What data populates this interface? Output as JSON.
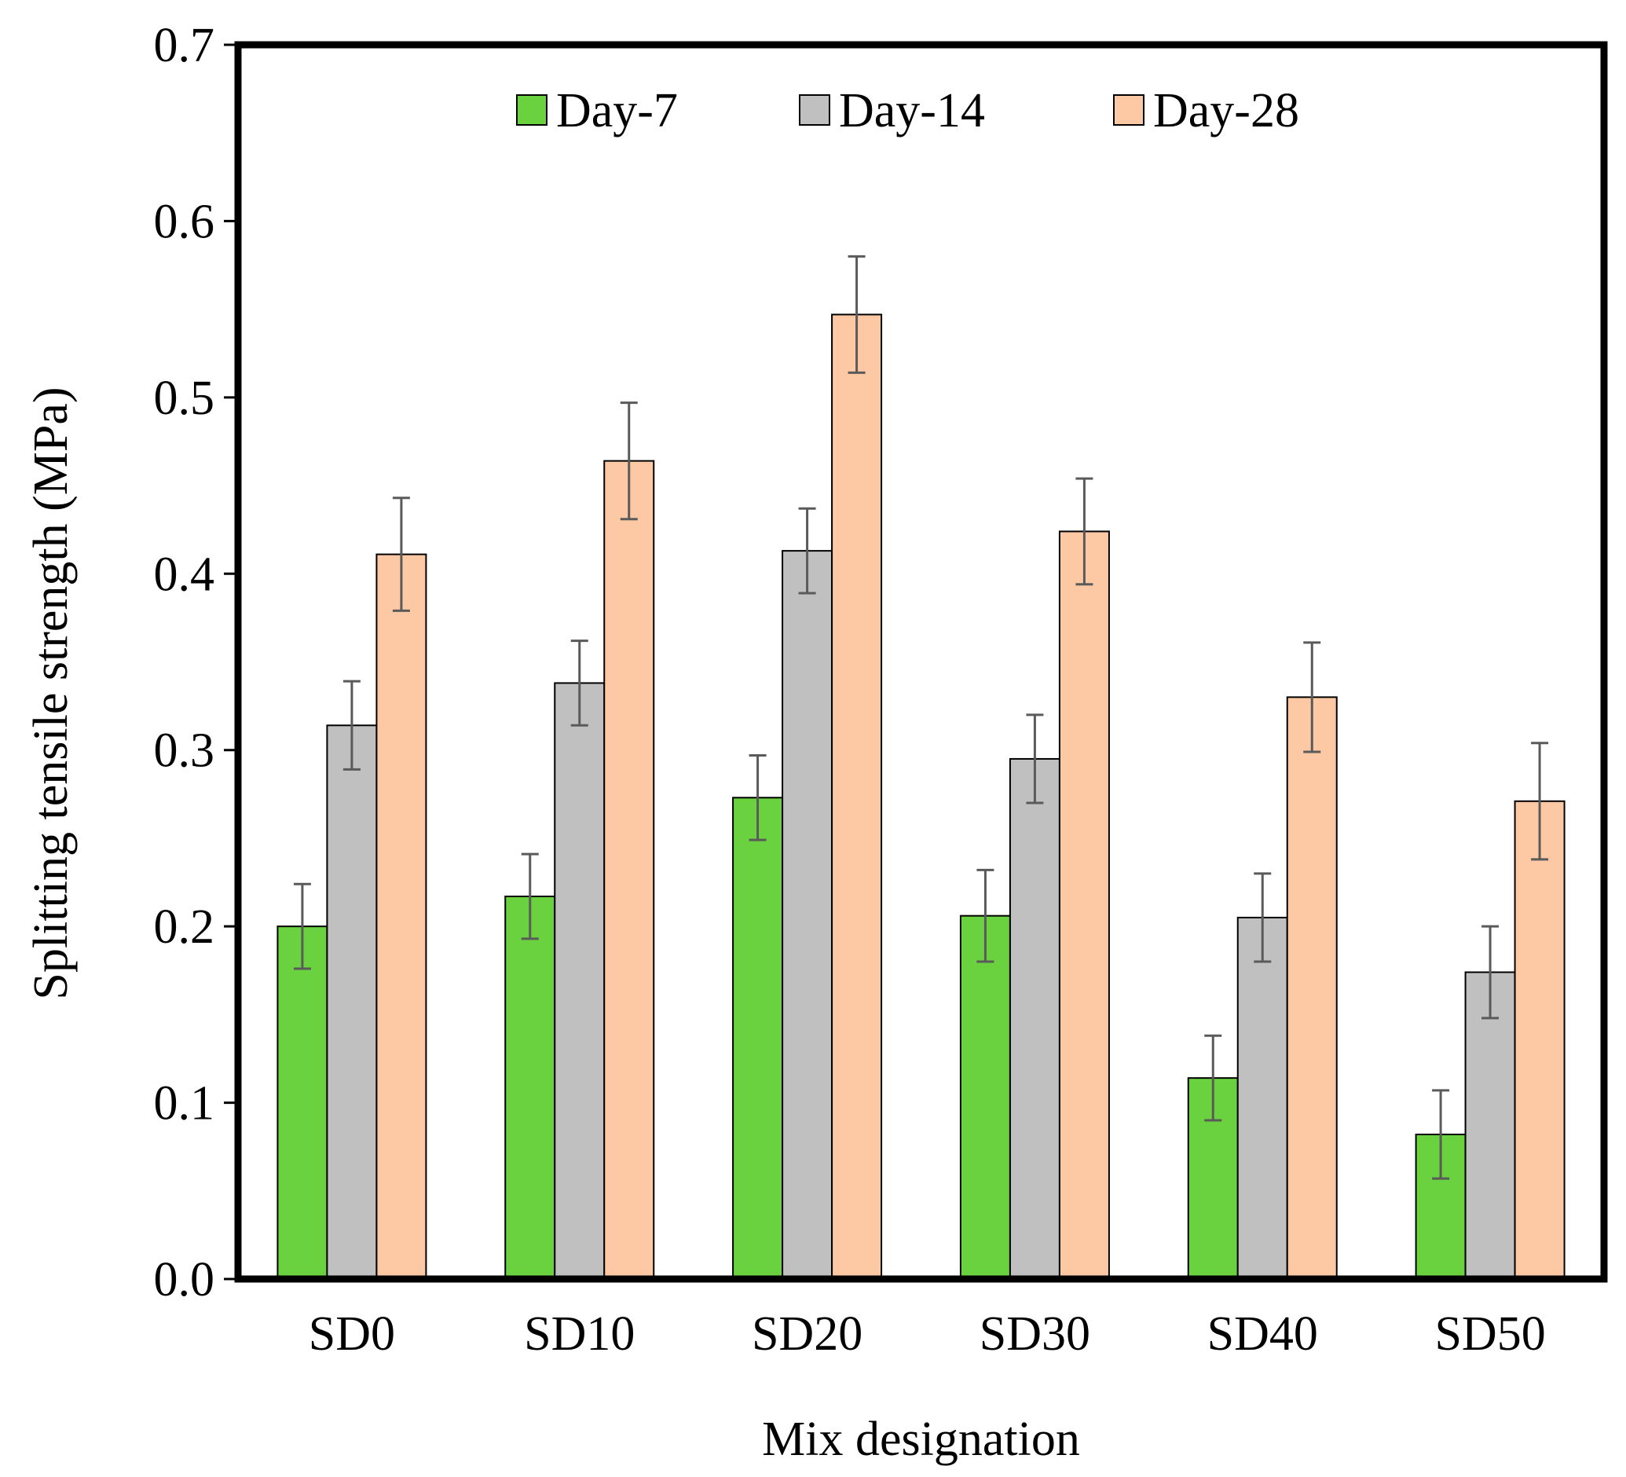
{
  "chart_data": {
    "type": "bar",
    "title": "",
    "xlabel": "Mix designation",
    "ylabel": "Splitting tensile strength (MPa)",
    "ylim": [
      0,
      0.7
    ],
    "yticks": [
      {
        "value": 0.0,
        "label": "0.0"
      },
      {
        "value": 0.1,
        "label": "0.1"
      },
      {
        "value": 0.2,
        "label": "0.2"
      },
      {
        "value": 0.3,
        "label": "0.3"
      },
      {
        "value": 0.4,
        "label": "0.4"
      },
      {
        "value": 0.5,
        "label": "0.5"
      },
      {
        "value": 0.6,
        "label": "0.6"
      },
      {
        "value": 0.7,
        "label": "0.7"
      }
    ],
    "grid": false,
    "legend_position": "top-center",
    "categories": [
      "SD0",
      "SD10",
      "SD20",
      "SD30",
      "SD40",
      "SD50"
    ],
    "series": [
      {
        "name": "Day-7",
        "color": "#6bd23f",
        "values": [
          0.2,
          0.217,
          0.273,
          0.206,
          0.114,
          0.082
        ],
        "errors": [
          0.024,
          0.024,
          0.024,
          0.026,
          0.024,
          0.025
        ]
      },
      {
        "name": "Day-14",
        "color": "#c0c0c0",
        "values": [
          0.314,
          0.338,
          0.413,
          0.295,
          0.205,
          0.174
        ],
        "errors": [
          0.025,
          0.024,
          0.024,
          0.025,
          0.025,
          0.026
        ]
      },
      {
        "name": "Day-28",
        "color": "#fdc8a4",
        "values": [
          0.411,
          0.464,
          0.547,
          0.424,
          0.33,
          0.271
        ],
        "errors": [
          0.032,
          0.033,
          0.033,
          0.03,
          0.031,
          0.033
        ]
      }
    ]
  }
}
